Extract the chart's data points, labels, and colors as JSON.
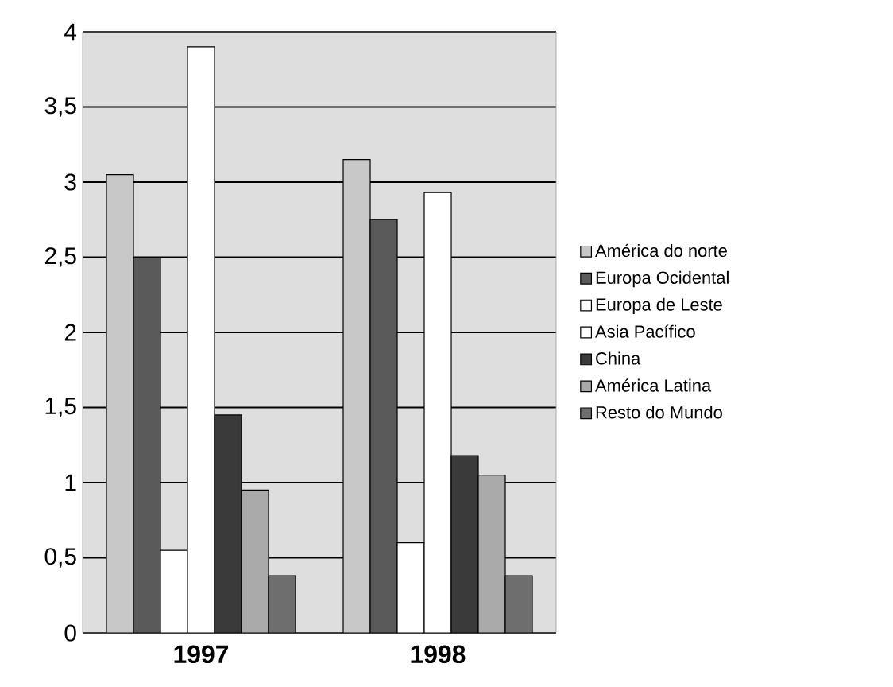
{
  "chart_data": {
    "type": "bar",
    "categories": [
      "1997",
      "1998"
    ],
    "series": [
      {
        "name": "América do norte",
        "color": "#c8c8c8",
        "values": [
          3.05,
          3.15
        ]
      },
      {
        "name": "Europa Ocidental",
        "color": "#5a5a5a",
        "values": [
          2.5,
          2.75
        ]
      },
      {
        "name": "Europa de Leste",
        "color": "#ffffff",
        "values": [
          0.55,
          0.6
        ]
      },
      {
        "name": "Asia Pacífico",
        "color": "#ffffff",
        "values": [
          3.9,
          2.93
        ]
      },
      {
        "name": "China",
        "color": "#3a3a3a",
        "values": [
          1.45,
          1.18
        ]
      },
      {
        "name": "América Latina",
        "color": "#aaaaaa",
        "values": [
          0.95,
          1.05
        ]
      },
      {
        "name": "Resto do Mundo",
        "color": "#6e6e6e",
        "values": [
          0.38,
          0.38
        ]
      }
    ],
    "ylim": [
      0,
      4
    ],
    "yticks": [
      0,
      {
        "value": 0.5,
        "label": "0,5"
      },
      1,
      {
        "value": 1.5,
        "label": "1,5"
      },
      2,
      {
        "value": 2.5,
        "label": "2,5"
      },
      3,
      {
        "value": 3.5,
        "label": "3,5"
      },
      4
    ],
    "grid": "y",
    "legend": "right"
  }
}
